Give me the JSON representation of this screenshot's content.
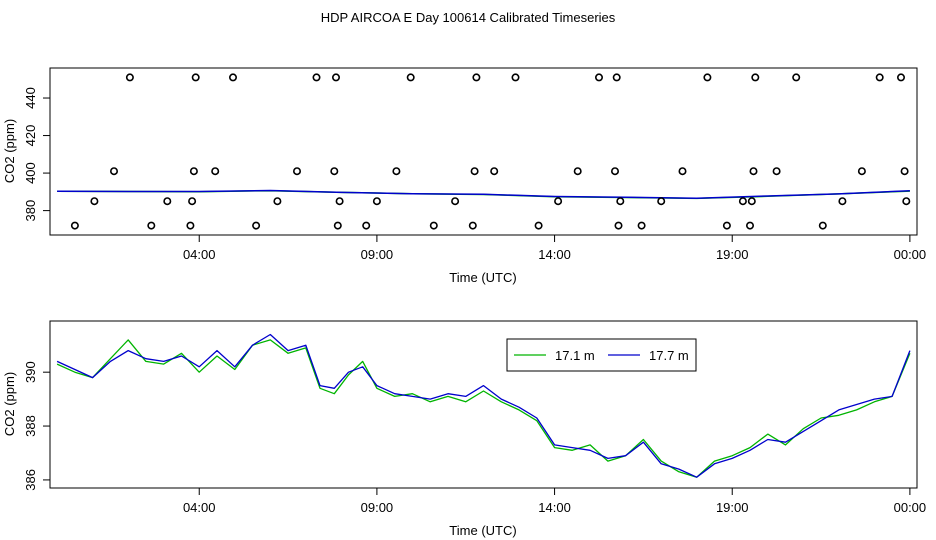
{
  "title": "HDP AIRCOA E  Day 100614  Calibrated Timeseries",
  "colors": {
    "green": "#00b400",
    "blue": "#0000cc",
    "axis": "#000000"
  },
  "chart_data": [
    {
      "type": "scatter",
      "xlabel": "Time (UTC)",
      "ylabel": "CO2 (ppm)",
      "xticks": [
        "04:00",
        "09:00",
        "14:00",
        "19:00",
        "00:00"
      ],
      "xtick_hours": [
        4,
        9,
        14,
        19,
        24
      ],
      "yticks": [
        380,
        400,
        420,
        440
      ],
      "xlim": [
        -0.2,
        24.2
      ],
      "ylim": [
        367,
        456
      ],
      "grid": false,
      "series": [
        {
          "marker": "open-circle",
          "x": [
            0.5,
            1.05,
            1.6,
            2.05,
            2.65,
            3.1,
            3.75,
            3.8,
            3.85,
            3.9,
            4.45,
            4.95,
            5.6,
            6.2,
            6.75,
            7.3,
            7.8,
            7.85,
            7.9,
            7.95,
            8.7,
            9.0,
            9.55,
            9.95,
            10.6,
            11.2,
            11.7,
            11.75,
            11.8,
            12.3,
            12.9,
            13.55,
            14.1,
            14.65,
            15.25,
            15.7,
            15.75,
            15.8,
            15.85,
            16.45,
            17.0,
            17.6,
            18.3,
            18.85,
            19.3,
            19.5,
            19.55,
            19.6,
            19.65,
            20.25,
            20.8,
            21.55,
            22.1,
            22.65,
            23.15,
            23.75,
            23.85,
            23.9
          ],
          "y": [
            372,
            385,
            401,
            451,
            372,
            385,
            372,
            385,
            401,
            451,
            401,
            451,
            372,
            385,
            401,
            451,
            401,
            451,
            372,
            385,
            372,
            385,
            401,
            451,
            372,
            385,
            372,
            401,
            451,
            401,
            451,
            372,
            385,
            401,
            451,
            401,
            451,
            372,
            385,
            372,
            385,
            401,
            451,
            372,
            385,
            372,
            385,
            401,
            451,
            401,
            451,
            372,
            385,
            401,
            451,
            451,
            401,
            385
          ]
        },
        {
          "name": "17.1 m",
          "color": "#00b400",
          "x": [
            0,
            2,
            4,
            6,
            8,
            10,
            12,
            14,
            16,
            18,
            20,
            22,
            24
          ],
          "y": [
            390.3,
            390.2,
            390.1,
            390.6,
            389.7,
            389.0,
            388.6,
            387.4,
            387.0,
            386.5,
            387.6,
            388.9,
            390.4
          ]
        },
        {
          "name": "17.7 m",
          "color": "#0000cc",
          "x": [
            0,
            2,
            4,
            6,
            8,
            10,
            12,
            14,
            16,
            18,
            20,
            22,
            24
          ],
          "y": [
            390.3,
            390.2,
            390.2,
            390.7,
            389.7,
            389.0,
            388.7,
            387.5,
            387.1,
            386.6,
            387.8,
            388.9,
            390.6
          ]
        }
      ]
    },
    {
      "type": "line",
      "xlabel": "Time (UTC)",
      "ylabel": "CO2 (ppm)",
      "xticks": [
        "04:00",
        "09:00",
        "14:00",
        "19:00",
        "00:00"
      ],
      "xtick_hours": [
        4,
        9,
        14,
        19,
        24
      ],
      "yticks": [
        386,
        388,
        390
      ],
      "xlim": [
        -0.2,
        24.2
      ],
      "ylim": [
        385.7,
        391.9
      ],
      "grid": false,
      "legend": "top-center",
      "x": [
        0,
        0.5,
        1,
        1.5,
        2,
        2.5,
        3,
        3.5,
        4,
        4.5,
        5,
        5.5,
        6,
        6.5,
        7,
        7.4,
        7.8,
        8.2,
        8.6,
        9,
        9.5,
        10,
        10.5,
        11,
        11.5,
        12,
        12.5,
        13,
        13.5,
        14,
        14.5,
        15,
        15.5,
        16,
        16.5,
        17,
        17.5,
        18,
        18.5,
        19,
        19.5,
        20,
        20.5,
        21,
        21.5,
        22,
        22.5,
        23,
        23.5,
        24
      ],
      "series": [
        {
          "name": "17.1 m",
          "color": "#00b400",
          "values": [
            390.3,
            390.0,
            389.8,
            390.5,
            391.2,
            390.4,
            390.3,
            390.7,
            390.0,
            390.6,
            390.1,
            391.0,
            391.2,
            390.7,
            390.9,
            389.4,
            389.2,
            389.9,
            390.4,
            389.4,
            389.1,
            389.2,
            388.9,
            389.1,
            388.9,
            389.3,
            388.9,
            388.6,
            388.2,
            387.2,
            387.1,
            387.3,
            386.7,
            386.9,
            387.5,
            386.7,
            386.3,
            386.1,
            386.7,
            386.9,
            387.2,
            387.7,
            387.3,
            387.9,
            388.3,
            388.4,
            388.6,
            388.9,
            389.1,
            390.7
          ]
        },
        {
          "name": "17.7 m",
          "color": "#0000cc",
          "values": [
            390.4,
            390.1,
            389.8,
            390.4,
            390.8,
            390.5,
            390.4,
            390.6,
            390.2,
            390.8,
            390.2,
            391.0,
            391.4,
            390.8,
            391.0,
            389.5,
            389.4,
            390.0,
            390.2,
            389.5,
            389.2,
            389.1,
            389.0,
            389.2,
            389.1,
            389.5,
            389.0,
            388.7,
            388.3,
            387.3,
            387.2,
            387.1,
            386.8,
            386.9,
            387.4,
            386.6,
            386.4,
            386.1,
            386.6,
            386.8,
            387.1,
            387.5,
            387.4,
            387.8,
            388.2,
            388.6,
            388.8,
            389.0,
            389.1,
            390.8
          ]
        }
      ]
    }
  ]
}
